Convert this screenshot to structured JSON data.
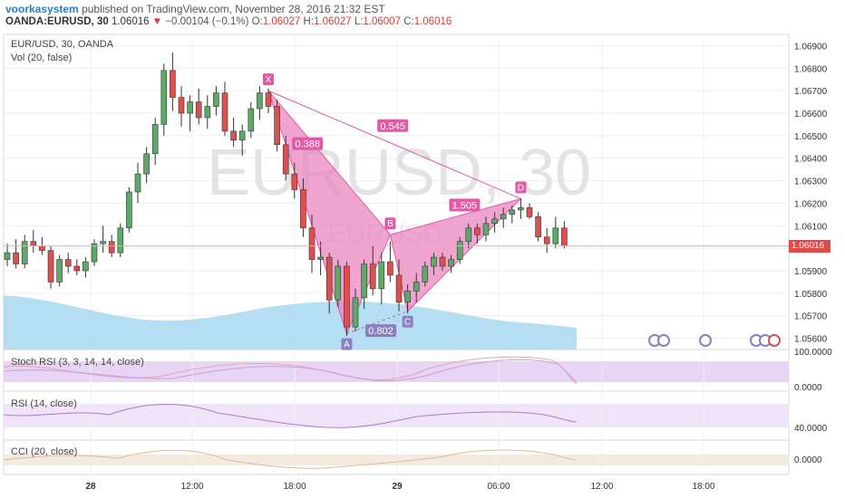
{
  "header": {
    "author": "voorkasystem",
    "published_text": "published on TradingView.com, November 28, 2016 21:32 EST",
    "symbol": "OANDA:EURUSD, 30",
    "last": "1.06016",
    "change_arrow": "▼",
    "change": "−0.00104 (−0.1%)",
    "o_label": "O:",
    "o_value": "1.06027",
    "h_label": "H:",
    "h_value": "1.06027",
    "l_label": "L:",
    "l_value": "1.06007",
    "c_label": "C:",
    "c_value": "1.06016"
  },
  "main_pane": {
    "title": "EUR/USD, 30, OANDA",
    "volume_label": "Vol (20, false)",
    "watermark": "EURUSD, 30",
    "watermark_ghost": "EURUSD",
    "current_price_label": "1.06016"
  },
  "indicators": {
    "stoch_rsi": {
      "label": "Stoch RSI (3, 3, 14, 14, close)",
      "ticks": [
        "100.0000",
        "0.0000"
      ]
    },
    "rsi": {
      "label": "RSI (14, close)",
      "ticks": [
        "40.0000"
      ]
    },
    "cci": {
      "label": "CCI (20, close)",
      "ticks": [
        "0.0000"
      ]
    }
  },
  "colors": {
    "up": "#5ea96a",
    "down": "#de4f4f",
    "harmonic": "#e05aa6",
    "harmonic_fill": "#e97fbe",
    "volume": "#a8d8f0",
    "stoch_band": "#e8d4f5",
    "rsi_band": "#efe4f8",
    "cci_band": "#f3ebdd"
  },
  "chart_data": {
    "type": "candlestick",
    "price_axis": {
      "ticks": [
        "1.06900",
        "1.06800",
        "1.06700",
        "1.06600",
        "1.06500",
        "1.06400",
        "1.06300",
        "1.06200",
        "1.06100",
        "1.06000",
        "1.05900",
        "1.05800",
        "1.05700",
        "1.05600"
      ],
      "range": [
        1.0555,
        1.0695
      ]
    },
    "time_axis": {
      "labels": [
        "28",
        "12:00",
        "18:00",
        "29",
        "06:00",
        "12:00",
        "18:00"
      ]
    },
    "candles": [
      {
        "o": 1.0595,
        "h": 1.0602,
        "l": 1.0592,
        "c": 1.0598
      },
      {
        "o": 1.0598,
        "h": 1.0604,
        "l": 1.0591,
        "c": 1.0593
      },
      {
        "o": 1.0593,
        "h": 1.0606,
        "l": 1.0591,
        "c": 1.0603
      },
      {
        "o": 1.0603,
        "h": 1.0608,
        "l": 1.0598,
        "c": 1.0601
      },
      {
        "o": 1.0601,
        "h": 1.0605,
        "l": 1.0597,
        "c": 1.0599
      },
      {
        "o": 1.0599,
        "h": 1.0601,
        "l": 1.0582,
        "c": 1.0585
      },
      {
        "o": 1.0585,
        "h": 1.0597,
        "l": 1.0583,
        "c": 1.0595
      },
      {
        "o": 1.0595,
        "h": 1.0598,
        "l": 1.0589,
        "c": 1.0592
      },
      {
        "o": 1.0592,
        "h": 1.0595,
        "l": 1.0588,
        "c": 1.059
      },
      {
        "o": 1.059,
        "h": 1.0596,
        "l": 1.0587,
        "c": 1.0594
      },
      {
        "o": 1.0594,
        "h": 1.0604,
        "l": 1.0592,
        "c": 1.0602
      },
      {
        "o": 1.0602,
        "h": 1.061,
        "l": 1.0598,
        "c": 1.0603
      },
      {
        "o": 1.0603,
        "h": 1.0606,
        "l": 1.0596,
        "c": 1.0598
      },
      {
        "o": 1.0598,
        "h": 1.0611,
        "l": 1.0596,
        "c": 1.0609
      },
      {
        "o": 1.0609,
        "h": 1.0627,
        "l": 1.0607,
        "c": 1.0625
      },
      {
        "o": 1.0625,
        "h": 1.0638,
        "l": 1.062,
        "c": 1.0633
      },
      {
        "o": 1.0633,
        "h": 1.0645,
        "l": 1.0629,
        "c": 1.0642
      },
      {
        "o": 1.0642,
        "h": 1.0658,
        "l": 1.0637,
        "c": 1.0655
      },
      {
        "o": 1.0655,
        "h": 1.0682,
        "l": 1.065,
        "c": 1.0679
      },
      {
        "o": 1.0679,
        "h": 1.0687,
        "l": 1.0661,
        "c": 1.0667
      },
      {
        "o": 1.0667,
        "h": 1.0672,
        "l": 1.0654,
        "c": 1.066
      },
      {
        "o": 1.066,
        "h": 1.0668,
        "l": 1.0652,
        "c": 1.0665
      },
      {
        "o": 1.0665,
        "h": 1.0671,
        "l": 1.0655,
        "c": 1.0658
      },
      {
        "o": 1.0658,
        "h": 1.0668,
        "l": 1.0653,
        "c": 1.0663
      },
      {
        "o": 1.0663,
        "h": 1.0672,
        "l": 1.0659,
        "c": 1.0669
      },
      {
        "o": 1.0669,
        "h": 1.0674,
        "l": 1.065,
        "c": 1.0652
      },
      {
        "o": 1.0652,
        "h": 1.0658,
        "l": 1.0645,
        "c": 1.0648
      },
      {
        "o": 1.0648,
        "h": 1.0655,
        "l": 1.0641,
        "c": 1.0652
      },
      {
        "o": 1.0652,
        "h": 1.0665,
        "l": 1.0649,
        "c": 1.0662
      },
      {
        "o": 1.0662,
        "h": 1.0672,
        "l": 1.0657,
        "c": 1.0669
      },
      {
        "o": 1.0669,
        "h": 1.0671,
        "l": 1.066,
        "c": 1.0663
      },
      {
        "o": 1.0663,
        "h": 1.0666,
        "l": 1.0643,
        "c": 1.0646
      },
      {
        "o": 1.0646,
        "h": 1.065,
        "l": 1.063,
        "c": 1.0633
      },
      {
        "o": 1.0633,
        "h": 1.0638,
        "l": 1.0622,
        "c": 1.0626
      },
      {
        "o": 1.0626,
        "h": 1.0631,
        "l": 1.0605,
        "c": 1.0609
      },
      {
        "o": 1.0609,
        "h": 1.0615,
        "l": 1.0589,
        "c": 1.0595
      },
      {
        "o": 1.0595,
        "h": 1.0603,
        "l": 1.0588,
        "c": 1.0596
      },
      {
        "o": 1.0596,
        "h": 1.0598,
        "l": 1.0571,
        "c": 1.0577
      },
      {
        "o": 1.0577,
        "h": 1.0595,
        "l": 1.0574,
        "c": 1.0592
      },
      {
        "o": 1.0592,
        "h": 1.0594,
        "l": 1.0561,
        "c": 1.0565
      },
      {
        "o": 1.0565,
        "h": 1.0582,
        "l": 1.0563,
        "c": 1.0578
      },
      {
        "o": 1.0578,
        "h": 1.0595,
        "l": 1.0573,
        "c": 1.0593
      },
      {
        "o": 1.0593,
        "h": 1.0601,
        "l": 1.0579,
        "c": 1.0582
      },
      {
        "o": 1.0582,
        "h": 1.0598,
        "l": 1.0575,
        "c": 1.0594
      },
      {
        "o": 1.0594,
        "h": 1.0603,
        "l": 1.0585,
        "c": 1.0588
      },
      {
        "o": 1.0588,
        "h": 1.0595,
        "l": 1.0572,
        "c": 1.0576
      },
      {
        "o": 1.0576,
        "h": 1.0584,
        "l": 1.0571,
        "c": 1.0581
      },
      {
        "o": 1.0581,
        "h": 1.0589,
        "l": 1.0576,
        "c": 1.0585
      },
      {
        "o": 1.0585,
        "h": 1.0594,
        "l": 1.0583,
        "c": 1.0592
      },
      {
        "o": 1.0592,
        "h": 1.0598,
        "l": 1.0588,
        "c": 1.0596
      },
      {
        "o": 1.0596,
        "h": 1.0598,
        "l": 1.059,
        "c": 1.0592
      },
      {
        "o": 1.0592,
        "h": 1.0597,
        "l": 1.0589,
        "c": 1.0595
      },
      {
        "o": 1.0595,
        "h": 1.0605,
        "l": 1.0593,
        "c": 1.0603
      },
      {
        "o": 1.0603,
        "h": 1.0611,
        "l": 1.06,
        "c": 1.0609
      },
      {
        "o": 1.0609,
        "h": 1.0611,
        "l": 1.0602,
        "c": 1.0606
      },
      {
        "o": 1.0606,
        "h": 1.0614,
        "l": 1.0603,
        "c": 1.0611
      },
      {
        "o": 1.0611,
        "h": 1.0616,
        "l": 1.0607,
        "c": 1.0613
      },
      {
        "o": 1.0613,
        "h": 1.0618,
        "l": 1.0609,
        "c": 1.0615
      },
      {
        "o": 1.0615,
        "h": 1.0619,
        "l": 1.0611,
        "c": 1.0617
      },
      {
        "o": 1.0617,
        "h": 1.0622,
        "l": 1.0613,
        "c": 1.0618
      },
      {
        "o": 1.0618,
        "h": 1.062,
        "l": 1.0613,
        "c": 1.0614
      },
      {
        "o": 1.0614,
        "h": 1.0616,
        "l": 1.0603,
        "c": 1.0605
      },
      {
        "o": 1.0605,
        "h": 1.0609,
        "l": 1.0598,
        "c": 1.0602
      },
      {
        "o": 1.0602,
        "h": 1.0614,
        "l": 1.06,
        "c": 1.0609
      },
      {
        "o": 1.0609,
        "h": 1.0612,
        "l": 1.06,
        "c": 1.0601
      }
    ],
    "harmonic_pattern": {
      "points": [
        {
          "label": "X",
          "index": 30,
          "price": 1.067
        },
        {
          "label": "A",
          "index": 39,
          "price": 1.0562
        },
        {
          "label": "B",
          "index": 44,
          "price": 1.0606
        },
        {
          "label": "C",
          "index": 46,
          "price": 1.0572
        },
        {
          "label": "D",
          "index": 59,
          "price": 1.0622
        }
      ],
      "ratios": [
        "0.388",
        "0.802",
        "1.505",
        "0.545"
      ]
    }
  }
}
